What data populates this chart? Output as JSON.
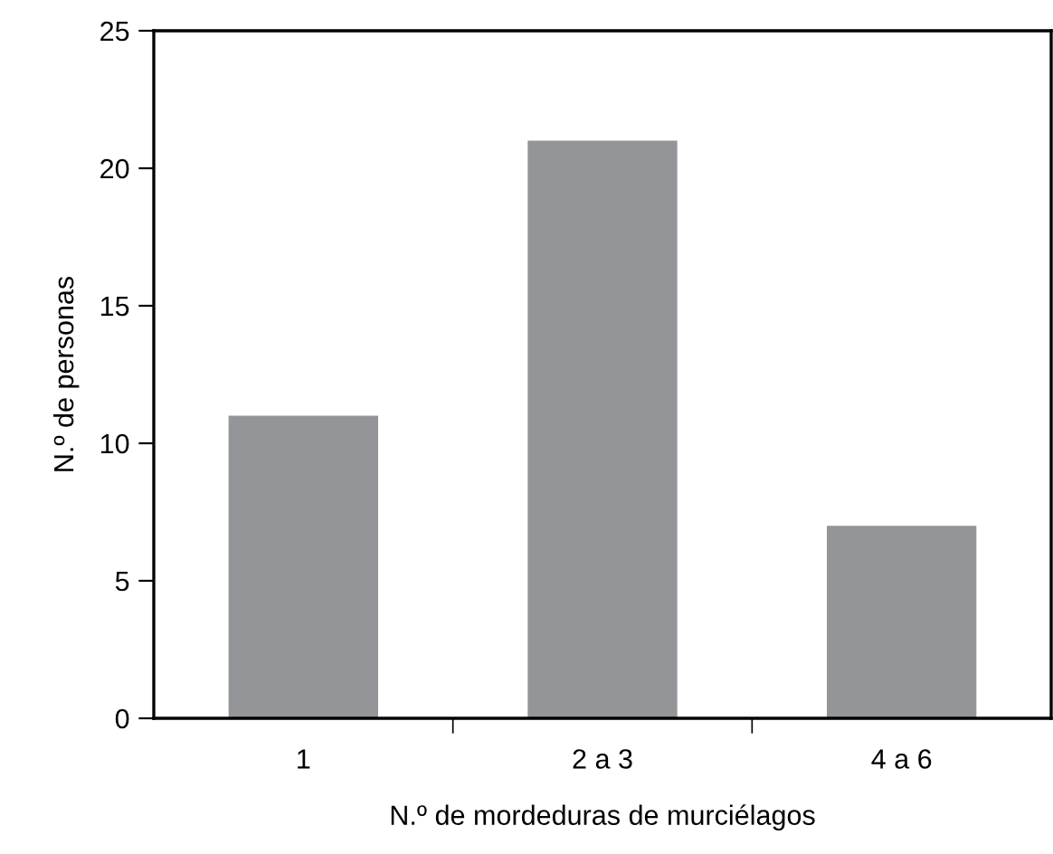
{
  "chart_data": {
    "type": "bar",
    "xlabel": "N.º de mordeduras de murciélagos",
    "ylabel": "N.º de personas",
    "categories": [
      "1",
      "2 a 3",
      "4 a 6"
    ],
    "values": [
      11,
      21,
      7
    ],
    "color": "#939598",
    "ylim": [
      0,
      25
    ],
    "yticks": [
      0,
      5,
      10,
      15,
      20,
      25
    ],
    "grid": false,
    "legend": false
  }
}
